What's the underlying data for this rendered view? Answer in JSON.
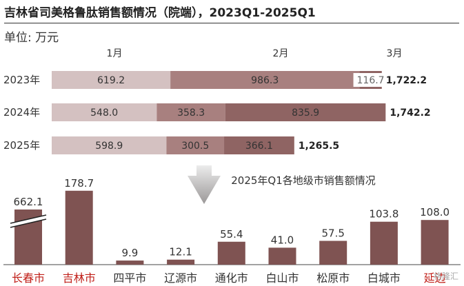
{
  "title": "吉林省司美格鲁肽销售额情况（院端），2023Q1-2025Q1",
  "unit": "单位:  万元",
  "watermark": "格隆汇",
  "colors": {
    "jan": "#d4c1c1",
    "feb": "#a8807f",
    "mar": "#8f6463",
    "bar": "#7f5352",
    "arrow": "#9b9898",
    "label_red": "#c0201a"
  },
  "chart_data": [
    {
      "type": "bar",
      "orientation": "horizontal",
      "stacked": true,
      "categories": [
        "2023年",
        "2024年",
        "2025年"
      ],
      "series": [
        {
          "name": "1月",
          "values": [
            619.2,
            548.0,
            598.9
          ]
        },
        {
          "name": "2月",
          "values": [
            986.3,
            358.3,
            300.5
          ]
        },
        {
          "name": "3月",
          "values": [
            116.7,
            835.9,
            366.1
          ]
        }
      ],
      "totals": [
        "1,722.2",
        "1,742.2",
        "1,265.5"
      ],
      "legend": "top"
    },
    {
      "type": "bar",
      "title": "2025年Q1各地级市销售额情况",
      "categories": [
        "长春市",
        "吉林市",
        "四平市",
        "辽源市",
        "通化市",
        "白山市",
        "松原市",
        "白城市",
        "延边"
      ],
      "values": [
        662.1,
        178.7,
        9.9,
        12.1,
        55.4,
        41.0,
        57.5,
        103.8,
        108.0
      ],
      "value_labels": [
        "662.1",
        "178.7",
        "9.9",
        "12.1",
        "55.4",
        "41.0",
        "57.5",
        "103.8",
        "108.0"
      ],
      "highlight_categories": [
        "长春市",
        "吉林市",
        "延边"
      ],
      "broken_axis_categories": [
        "长春市"
      ]
    }
  ]
}
